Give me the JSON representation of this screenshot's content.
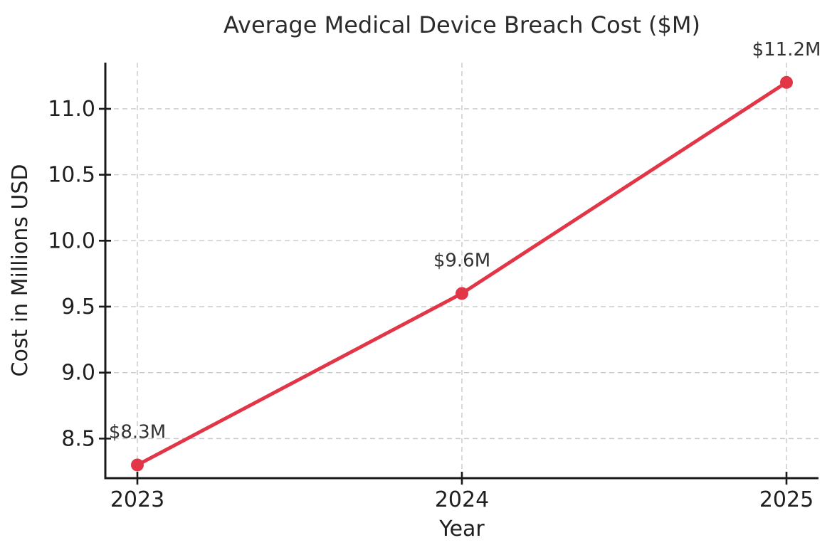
{
  "chart_data": {
    "type": "line",
    "title": "Average Medical Device Breach Cost ($M)",
    "xlabel": "Year",
    "ylabel": "Cost in Millions USD",
    "categories": [
      "2023",
      "2024",
      "2025"
    ],
    "series": [
      {
        "values": [
          8.3,
          9.6,
          11.2
        ],
        "point_labels": [
          "$8.3M",
          "$9.6M",
          "$11.2M"
        ],
        "color": "#e23547"
      }
    ],
    "yticks": [
      8.5,
      9.0,
      9.5,
      10.0,
      10.5,
      11.0
    ],
    "ylim": [
      8.2,
      11.35
    ],
    "grid": "dashed both",
    "legend": "none",
    "colors": {
      "line": "#e23547",
      "marker": "#e23547",
      "grid": "#c9c9c9",
      "spine": "#1a1a1a",
      "text": "#1f1f1f"
    }
  }
}
